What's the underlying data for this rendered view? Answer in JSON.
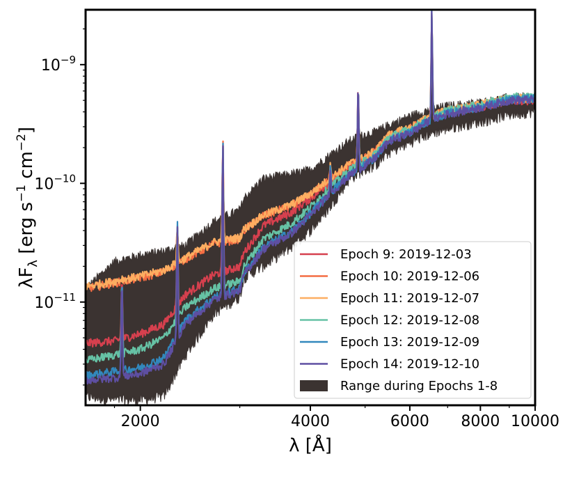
{
  "chart_data": {
    "type": "line",
    "title": "",
    "xlabel": "λ [Å]",
    "ylabel": "λF_λ [erg s⁻¹ cm⁻²]",
    "xscale": "log",
    "yscale": "log",
    "xlim": [
      1600,
      10000
    ],
    "ylim": [
      1.35e-12,
      2.9e-09
    ],
    "x_ticks": [
      {
        "value": 2000,
        "label": "2000"
      },
      {
        "value": 4000,
        "label": "4000"
      },
      {
        "value": 6000,
        "label": "6000"
      },
      {
        "value": 8000,
        "label": "8000"
      },
      {
        "value": 10000,
        "label": "10000"
      }
    ],
    "y_ticks": [
      {
        "value": 1e-11,
        "base": "10",
        "exp": "−11"
      },
      {
        "value": 1e-10,
        "base": "10",
        "exp": "−10"
      },
      {
        "value": 1e-09,
        "base": "10",
        "exp": "−9"
      }
    ],
    "range_band": {
      "name": "Range during Epochs 1-8",
      "color": "#3b3331",
      "x": [
        1600,
        1800,
        2000,
        2200,
        2400,
        2700,
        3000,
        3050,
        3300,
        3700,
        4000,
        4300,
        4700,
        5000,
        5200,
        5500,
        6000,
        6500,
        7000,
        8000,
        9000,
        10000
      ],
      "upper": [
        1.3e-11,
        2.2e-11,
        2.5e-11,
        2.7e-11,
        3e-11,
        4.8e-11,
        6e-11,
        7.5e-11,
        1.1e-10,
        1.2e-10,
        1.3e-10,
        1.7e-10,
        2.3e-10,
        2.6e-10,
        2.7e-10,
        3.1e-10,
        3.7e-10,
        4.2e-10,
        4.5e-10,
        4.8e-10,
        5.3e-10,
        5.4e-10
      ],
      "lower": [
        1.6e-12,
        1.5e-12,
        1.5e-12,
        1.6e-12,
        3.5e-12,
        8e-12,
        1.1e-11,
        1.6e-11,
        2e-11,
        2.9e-11,
        4e-11,
        6e-11,
        1.1e-10,
        1.3e-10,
        1.4e-10,
        1.8e-10,
        2.2e-10,
        2.6e-10,
        2.9e-10,
        3.3e-10,
        3.8e-10,
        4e-10
      ]
    },
    "x": [
      1600,
      1800,
      2000,
      2200,
      2400,
      2700,
      3000,
      3050,
      3300,
      3700,
      4000,
      4300,
      4700,
      5000,
      5200,
      5500,
      6000,
      6500,
      7000,
      8000,
      9000,
      10000
    ],
    "series": [
      {
        "name": "Epoch 9: 2019-12-03",
        "color": "#d6404e",
        "values": [
          4.5e-12,
          4.7e-12,
          5.4e-12,
          6.5e-12,
          1.15e-11,
          1.7e-11,
          2e-11,
          2.6e-11,
          4.4e-11,
          5.7e-11,
          7.5e-11,
          1e-10,
          1.4e-10,
          1.6e-10,
          1.8e-10,
          2.45e-10,
          2.85e-10,
          3.5e-10,
          4e-10,
          4.4e-10,
          5e-10,
          5e-10
        ]
      },
      {
        "name": "Epoch 10: 2019-12-06",
        "color": "#f46d43",
        "values": [
          1.3e-11,
          1.45e-11,
          1.6e-11,
          1.8e-11,
          2.3e-11,
          3.1e-11,
          3.4e-11,
          4e-11,
          5.3e-11,
          6.5e-11,
          8e-11,
          1.05e-10,
          1.45e-10,
          1.65e-10,
          1.85e-10,
          2.5e-10,
          2.9e-10,
          3.6e-10,
          4.1e-10,
          4.5e-10,
          5.1e-10,
          5.1e-10
        ]
      },
      {
        "name": "Epoch 11: 2019-12-07",
        "color": "#fdae61",
        "values": [
          1.35e-11,
          1.5e-11,
          1.65e-11,
          1.85e-11,
          2.35e-11,
          3.2e-11,
          3.5e-11,
          4.1e-11,
          5.4e-11,
          6.6e-11,
          8.2e-11,
          1.07e-10,
          1.47e-10,
          1.67e-10,
          1.87e-10,
          2.55e-10,
          2.95e-10,
          3.65e-10,
          4.15e-10,
          4.6e-10,
          5.2e-10,
          5.2e-10
        ]
      },
      {
        "name": "Epoch 12: 2019-12-08",
        "color": "#66c2a5",
        "values": [
          3.2e-12,
          3.6e-12,
          4e-12,
          5e-12,
          9e-12,
          1.3e-11,
          1.5e-11,
          2e-11,
          3.4e-11,
          4.6e-11,
          6.3e-11,
          9e-11,
          1.3e-10,
          1.55e-10,
          1.75e-10,
          2.45e-10,
          2.85e-10,
          3.55e-10,
          4.1e-10,
          4.6e-10,
          5.3e-10,
          5.4e-10
        ]
      },
      {
        "name": "Epoch 13: 2019-12-09",
        "color": "#3288bd",
        "values": [
          2.4e-12,
          2.6e-12,
          2.8e-12,
          3.4e-12,
          7e-12,
          1.1e-11,
          1.3e-11,
          1.75e-11,
          2.9e-11,
          3.9e-11,
          5.6e-11,
          8e-11,
          1.2e-10,
          1.45e-10,
          1.65e-10,
          2.3e-10,
          2.7e-10,
          3.4e-10,
          3.9e-10,
          4.4e-10,
          5.1e-10,
          5.2e-10
        ]
      },
      {
        "name": "Epoch 14: 2019-12-10",
        "color": "#5e4fa2",
        "values": [
          2.2e-12,
          2.3e-12,
          2.5e-12,
          3e-12,
          6.5e-12,
          1.05e-11,
          1.25e-11,
          1.7e-11,
          2.8e-11,
          3.8e-11,
          5.4e-11,
          7.8e-11,
          1.18e-10,
          1.42e-10,
          1.62e-10,
          2.25e-10,
          2.65e-10,
          3.35e-10,
          3.85e-10,
          4.35e-10,
          5e-10,
          5.1e-10
        ]
      }
    ],
    "emission_lines": [
      {
        "x": 1855,
        "peak": 1.6e-11
      },
      {
        "x": 2326,
        "peak": 4.5e-11
      },
      {
        "x": 2800,
        "peak": 2.3e-10
      },
      {
        "x": 4340,
        "peak": 1.4e-10
      },
      {
        "x": 4861,
        "peak": 6.5e-10
      },
      {
        "x": 6563,
        "peak": 2.8e-09
      }
    ],
    "legend": {
      "location": "lower-right",
      "entries": [
        {
          "label": "Epoch 9: 2019-12-03",
          "color": "#d6404e",
          "kind": "line"
        },
        {
          "label": "Epoch 10: 2019-12-06",
          "color": "#f46d43",
          "kind": "line"
        },
        {
          "label": "Epoch 11: 2019-12-07",
          "color": "#fdae61",
          "kind": "line"
        },
        {
          "label": "Epoch 12: 2019-12-08",
          "color": "#66c2a5",
          "kind": "line"
        },
        {
          "label": "Epoch 13: 2019-12-09",
          "color": "#3288bd",
          "kind": "line"
        },
        {
          "label": "Epoch 14: 2019-12-10",
          "color": "#5e4fa2",
          "kind": "line"
        },
        {
          "label": "Range during Epochs 1-8",
          "color": "#3b3331",
          "kind": "patch"
        }
      ]
    }
  }
}
